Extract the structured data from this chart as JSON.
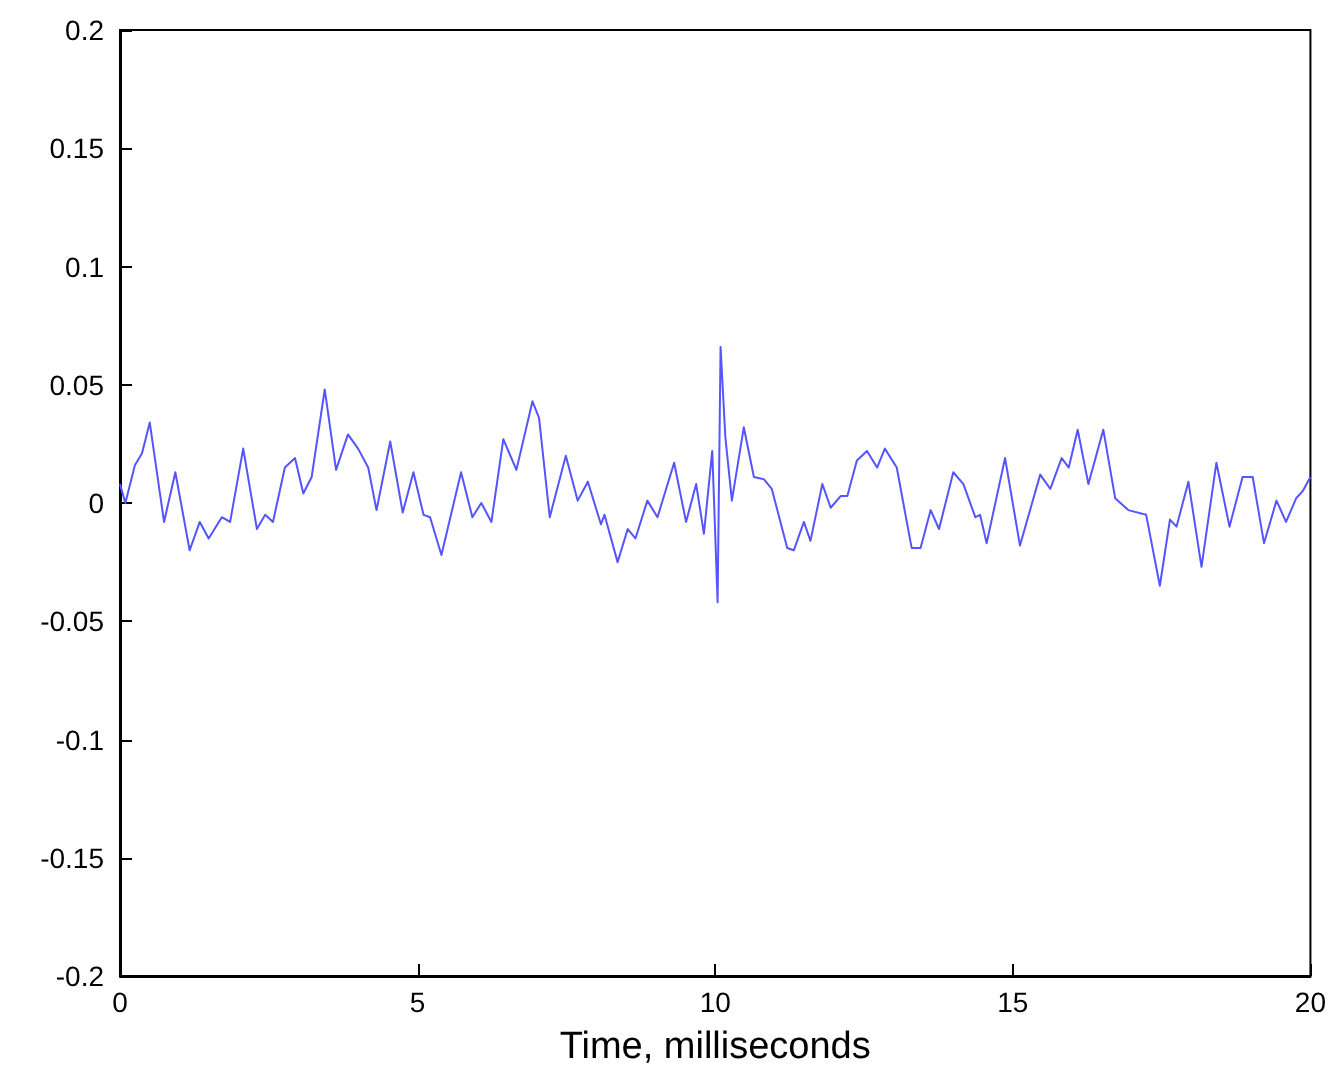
{
  "chart_data": {
    "type": "line",
    "xlabel": "Time, milliseconds",
    "xlim": [
      0,
      20
    ],
    "xticks": [
      0,
      5,
      10,
      15,
      20
    ],
    "ylim": [
      -0.2,
      0.2
    ],
    "yticks": [
      -0.2,
      -0.15,
      -0.1,
      -0.05,
      0,
      0.05,
      0.1,
      0.15,
      0.2
    ],
    "grid": false,
    "marker": "none",
    "line_style": "solid",
    "series": [
      {
        "color": "#5555ff",
        "x": [
          0,
          0.09,
          0.25,
          0.37,
          0.5,
          0.74,
          0.93,
          1.17,
          1.34,
          1.49,
          1.71,
          1.85,
          2.07,
          2.3,
          2.44,
          2.57,
          2.77,
          2.94,
          3.08,
          3.22,
          3.44,
          3.63,
          3.83,
          4.0,
          4.17,
          4.31,
          4.54,
          4.75,
          4.93,
          5.1,
          5.21,
          5.4,
          5.73,
          5.92,
          6.07,
          6.24,
          6.44,
          6.66,
          6.93,
          7.04,
          7.22,
          7.49,
          7.69,
          7.86,
          8.08,
          8.14,
          8.36,
          8.53,
          8.66,
          8.86,
          9.03,
          9.31,
          9.51,
          9.68,
          9.81,
          9.95,
          9.99,
          10.04,
          10.09,
          10.17,
          10.28,
          10.48,
          10.65,
          10.82,
          10.95,
          11.21,
          11.32,
          11.49,
          11.6,
          11.8,
          11.94,
          12.11,
          12.22,
          12.38,
          12.55,
          12.72,
          12.85,
          13.05,
          13.3,
          13.45,
          13.62,
          13.76,
          14.0,
          14.17,
          14.37,
          14.45,
          14.56,
          14.87,
          15.12,
          15.46,
          15.63,
          15.82,
          15.94,
          16.09,
          16.27,
          16.52,
          16.72,
          16.94,
          17.24,
          17.47,
          17.64,
          17.75,
          17.95,
          18.17,
          18.42,
          18.64,
          18.86,
          19.03,
          19.22,
          19.43,
          19.59,
          19.76,
          19.87,
          20.0
        ],
        "values": [
          0.008,
          0,
          0.016,
          0.021,
          0.034,
          -0.008,
          0.013,
          -0.02,
          -0.008,
          -0.015,
          -0.006,
          -0.008,
          0.023,
          -0.011,
          -0.005,
          -0.008,
          0.015,
          0.019,
          0.004,
          0.011,
          0.048,
          0.014,
          0.029,
          0.023,
          0.015,
          -0.003,
          0.026,
          -0.004,
          0.013,
          -0.005,
          -0.006,
          -0.022,
          0.013,
          -0.006,
          0,
          -0.008,
          0.027,
          0.014,
          0.043,
          0.036,
          -0.006,
          0.02,
          0.001,
          0.009,
          -0.009,
          -0.005,
          -0.025,
          -0.011,
          -0.015,
          0.001,
          -0.006,
          0.017,
          -0.008,
          0.008,
          -0.013,
          0.022,
          -0.006,
          -0.042,
          0.066,
          0.028,
          0.001,
          0.032,
          0.011,
          0.01,
          0.006,
          -0.019,
          -0.02,
          -0.008,
          -0.016,
          0.008,
          -0.002,
          0.003,
          0.003,
          0.018,
          0.022,
          0.015,
          0.023,
          0.015,
          -0.019,
          -0.019,
          -0.003,
          -0.011,
          0.013,
          0.008,
          -0.006,
          -0.005,
          -0.017,
          0.019,
          -0.018,
          0.012,
          0.006,
          0.019,
          0.015,
          0.031,
          0.008,
          0.031,
          0.002,
          -0.003,
          -0.005,
          -0.035,
          -0.007,
          -0.01,
          0.009,
          -0.027,
          0.017,
          -0.01,
          0.011,
          0.011,
          -0.017,
          0.001,
          -0.008,
          0.002,
          0.005,
          0.011
        ]
      }
    ]
  }
}
